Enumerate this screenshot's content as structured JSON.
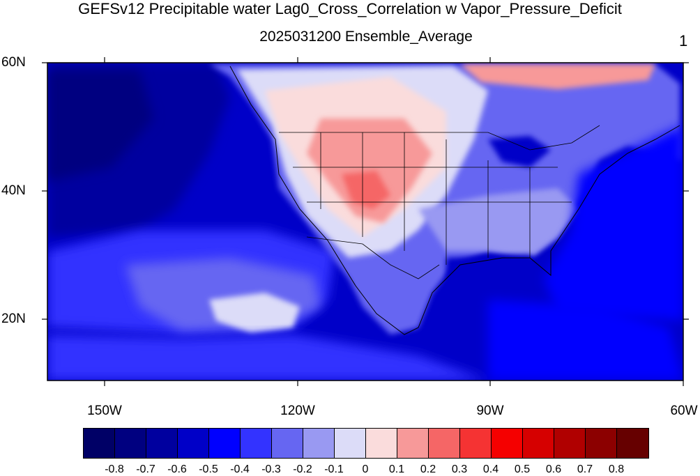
{
  "title": "GEFSv12 Precipitable water Lag0_Cross_Correlation w Vapor_Pressure_Deficit",
  "subtitle": "2025031200 Ensemble_Average",
  "panel_label": "1",
  "map": {
    "projection": "cylindrical equidistant",
    "lon_range": [
      -160,
      -60
    ],
    "lat_range": [
      10,
      60
    ],
    "lat_labels": [
      "60N",
      "40N",
      "20N"
    ],
    "lon_labels": [
      "150W",
      "120W",
      "90W",
      "60W"
    ],
    "boundaries": "coastlines, US states, Canada and Mexico borders"
  },
  "colorbar": {
    "labels": [
      "-0.8",
      "-0.7",
      "-0.6",
      "-0.5",
      "-0.4",
      "-0.3",
      "-0.2",
      "-0.1",
      "0",
      "0.1",
      "0.2",
      "0.3",
      "0.4",
      "0.5",
      "0.6",
      "0.7",
      "0.8"
    ],
    "colors": [
      "#000066",
      "#000080",
      "#00009f",
      "#0000c8",
      "#0000ff",
      "#3333ff",
      "#6666f2",
      "#9999f2",
      "#dcdcf8",
      "#fadcdc",
      "#f79999",
      "#f56666",
      "#f53333",
      "#f50000",
      "#d60000",
      "#b00000",
      "#8c0000",
      "#660000"
    ]
  }
}
